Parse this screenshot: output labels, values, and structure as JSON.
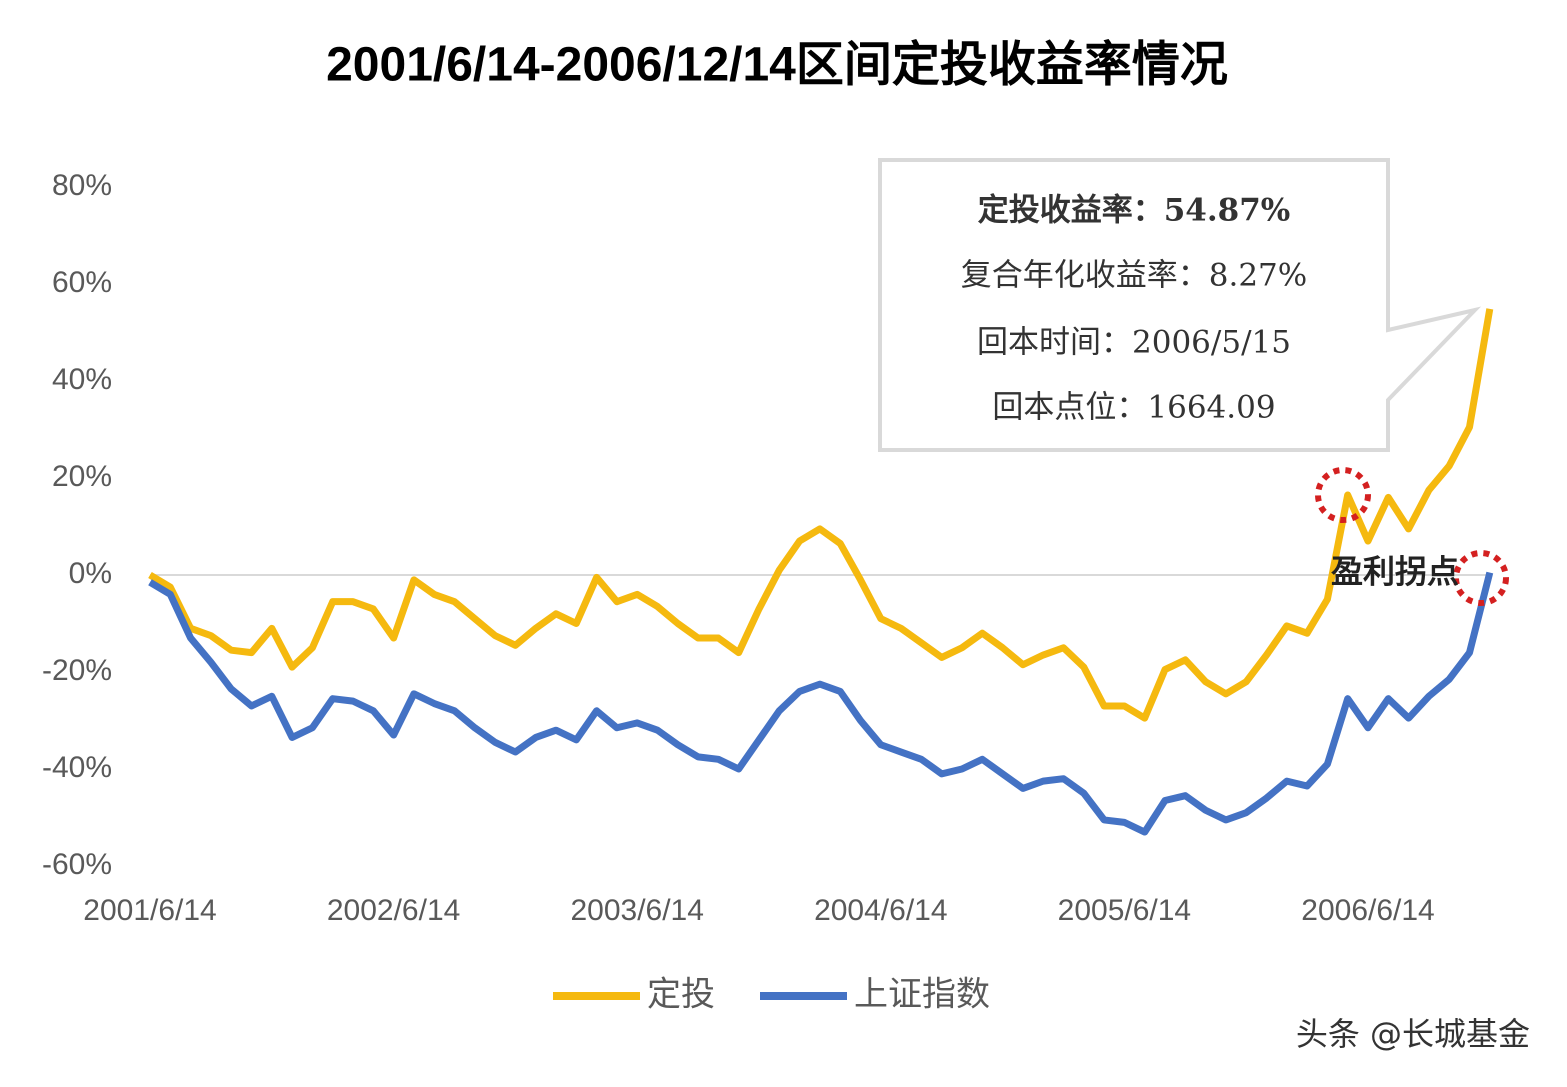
{
  "chart_data": {
    "type": "line",
    "title": "2001/6/14-2006/12/14区间定投收益率情况",
    "categories": [
      "2001/6/14",
      null,
      null,
      null,
      null,
      null,
      null,
      null,
      null,
      null,
      null,
      null,
      "2002/6/14",
      null,
      null,
      null,
      null,
      null,
      null,
      null,
      null,
      null,
      null,
      null,
      "2003/6/14",
      null,
      null,
      null,
      null,
      null,
      null,
      null,
      null,
      null,
      null,
      null,
      "2004/6/14",
      null,
      null,
      null,
      null,
      null,
      null,
      null,
      null,
      null,
      null,
      null,
      "2005/6/14",
      null,
      null,
      null,
      null,
      null,
      null,
      null,
      null,
      null,
      null,
      null,
      "2006/6/14",
      null,
      null,
      null,
      null,
      null,
      null
    ],
    "series": [
      {
        "name": "定投",
        "color": "#F5B90F",
        "values": [
          0,
          -2.5,
          -11,
          -12.5,
          -15.5,
          -16,
          -11,
          -19,
          -15,
          -5.5,
          -5.5,
          -7,
          -13,
          -1,
          -4,
          -5.5,
          -9,
          -12.5,
          -14.5,
          -11,
          -8,
          -10,
          -0.5,
          -5.5,
          -4,
          -6.5,
          -10,
          -13,
          -13,
          -16,
          -7,
          1,
          7,
          9.5,
          6.5,
          -1,
          -9,
          -11,
          -14,
          -17,
          -15,
          -12,
          -15,
          -18.5,
          -16.5,
          -15,
          -19,
          -27,
          -27,
          -29.5,
          -19.5,
          -17.5,
          -22,
          -24.5,
          -22,
          -16.5,
          -10.5,
          -12,
          -5,
          16.5,
          7,
          16,
          9.5,
          17.5,
          22.5,
          30.5,
          54.87
        ]
      },
      {
        "name": "上证指数",
        "color": "#4472C4",
        "values": [
          -1.5,
          -4,
          -13,
          -18,
          -23.5,
          -27,
          -25,
          -33.5,
          -31.5,
          -25.5,
          -26,
          -28,
          -33,
          -24.5,
          -26.5,
          -28,
          -31.5,
          -34.5,
          -36.5,
          -33.5,
          -32,
          -34,
          -28,
          -31.5,
          -30.5,
          -32,
          -35,
          -37.5,
          -38,
          -40,
          -34,
          -28,
          -24,
          -22.5,
          -24,
          -30,
          -35,
          -36.5,
          -38,
          -41,
          -40,
          -38,
          -41,
          -44,
          -42.5,
          -42,
          -45,
          -50.5,
          -51,
          -53,
          -46.5,
          -45.5,
          -48.5,
          -50.5,
          -49,
          -46,
          -42.5,
          -43.5,
          -39,
          -25.5,
          -31.5,
          -25.5,
          -29.5,
          -25,
          -21.5,
          -16,
          0.5
        ]
      }
    ],
    "ylim": [
      -60,
      80
    ],
    "yticks": [
      {
        "value": -60,
        "label": "-60%"
      },
      {
        "value": -40,
        "label": "-40%"
      },
      {
        "value": -20,
        "label": "-20%"
      },
      {
        "value": 0,
        "label": "0%"
      },
      {
        "value": 20,
        "label": "20%"
      },
      {
        "value": 40,
        "label": "40%"
      },
      {
        "value": 60,
        "label": "60%"
      },
      {
        "value": 80,
        "label": "80%"
      }
    ],
    "callout": [
      "定投收益率：54.87%",
      "复合年化收益率：8.27%",
      "回本时间：2006/5/15",
      "回本点位：1664.09"
    ],
    "annotation": "盈利拐点",
    "watermark": "头条 @长城基金"
  }
}
